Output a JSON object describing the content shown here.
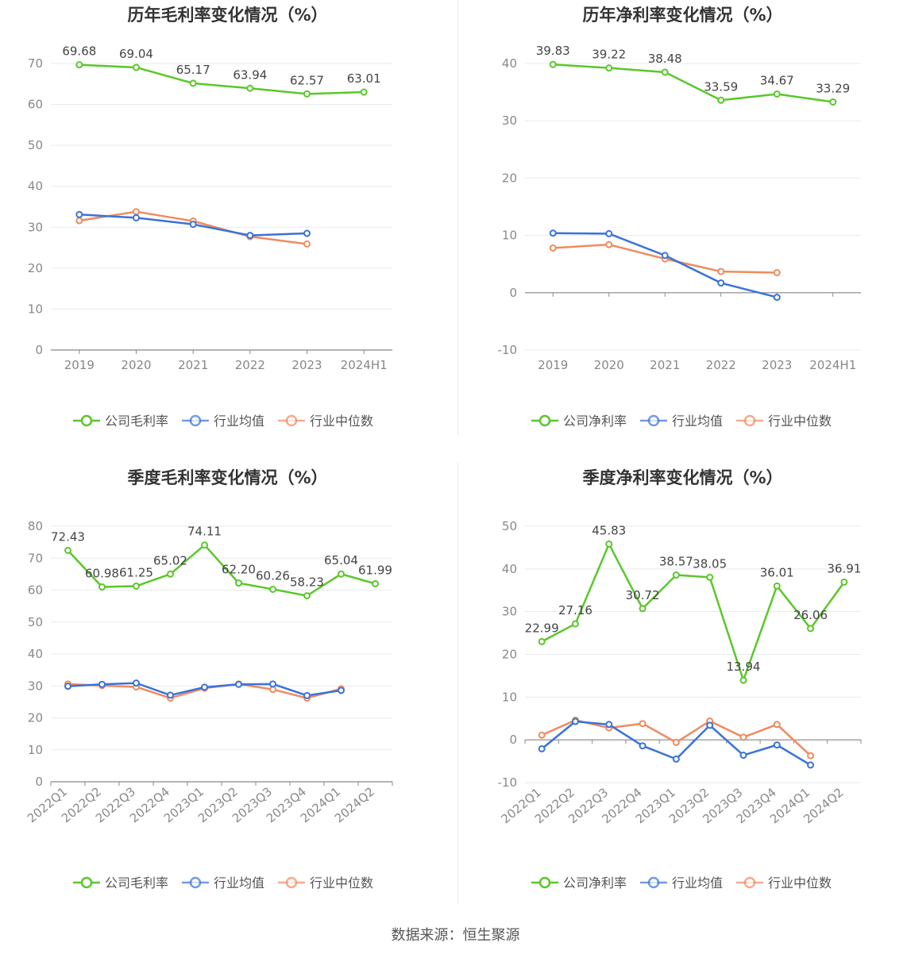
{
  "legend": {
    "gross": [
      "公司毛利率",
      "行业均值",
      "行业中位数"
    ],
    "net": [
      "公司净利率",
      "行业均值",
      "行业中位数"
    ]
  },
  "colors": {
    "company": "#5ac72a",
    "industry_avg": "#3a72d8",
    "industry_median": "#f08a5d",
    "grid": "#e6e9f0",
    "axis": "#888888",
    "text": "#555555"
  },
  "source": "数据来源：恒生聚源",
  "chart_data": [
    {
      "type": "line",
      "title": "历年毛利率变化情况（%）",
      "categories": [
        "2019",
        "2020",
        "2021",
        "2022",
        "2023",
        "2024H1"
      ],
      "ylim": [
        0,
        70
      ],
      "yticks": [
        0,
        10,
        20,
        30,
        40,
        50,
        60,
        70
      ],
      "series": [
        {
          "name": "公司毛利率",
          "values": [
            69.68,
            69.04,
            65.17,
            63.94,
            62.57,
            63.01
          ],
          "labels": [
            "69.68",
            "69.04",
            "65.17",
            "63.94",
            "62.57",
            "63.01"
          ]
        },
        {
          "name": "行业均值",
          "values": [
            33.1,
            32.3,
            30.7,
            28.0,
            28.5,
            null
          ]
        },
        {
          "name": "行业中位数",
          "values": [
            31.6,
            33.8,
            31.5,
            27.7,
            25.9,
            null
          ]
        }
      ],
      "legend": "bottom",
      "grid": true
    },
    {
      "type": "line",
      "title": "历年净利率变化情况（%）",
      "categories": [
        "2019",
        "2020",
        "2021",
        "2022",
        "2023",
        "2024H1"
      ],
      "ylim": [
        -10,
        40
      ],
      "yticks": [
        -10,
        0,
        10,
        20,
        30,
        40
      ],
      "series": [
        {
          "name": "公司净利率",
          "values": [
            39.83,
            39.22,
            38.48,
            33.59,
            34.67,
            33.29
          ],
          "labels": [
            "39.83",
            "39.22",
            "38.48",
            "33.59",
            "34.67",
            "33.29"
          ]
        },
        {
          "name": "行业均值",
          "values": [
            10.4,
            10.3,
            6.5,
            1.7,
            -0.8,
            null
          ]
        },
        {
          "name": "行业中位数",
          "values": [
            7.8,
            8.4,
            5.9,
            3.7,
            3.5,
            null
          ]
        }
      ],
      "legend": "bottom",
      "grid": true
    },
    {
      "type": "line",
      "title": "季度毛利率变化情况（%）",
      "categories": [
        "2022Q1",
        "2022Q2",
        "2022Q3",
        "2022Q4",
        "2023Q1",
        "2023Q2",
        "2023Q3",
        "2023Q4",
        "2024Q1",
        "2024Q2"
      ],
      "ylim": [
        0,
        80
      ],
      "yticks": [
        0,
        10,
        20,
        30,
        40,
        50,
        60,
        70,
        80
      ],
      "series": [
        {
          "name": "公司毛利率",
          "values": [
            72.43,
            60.98,
            61.25,
            65.02,
            74.11,
            62.2,
            60.26,
            58.23,
            65.04,
            61.99
          ],
          "labels": [
            "72.43",
            "60.98",
            "61.25",
            "65.02",
            "74.11",
            "62.20",
            "60.26",
            "58.23",
            "65.04",
            "61.99"
          ]
        },
        {
          "name": "行业均值",
          "values": [
            29.9,
            30.5,
            30.9,
            27.1,
            29.6,
            30.5,
            30.6,
            27.0,
            28.6,
            null
          ]
        },
        {
          "name": "行业中位数",
          "values": [
            30.6,
            30.1,
            29.7,
            26.2,
            29.3,
            30.6,
            28.9,
            26.2,
            29.1,
            null
          ]
        }
      ],
      "legend": "bottom",
      "grid": true
    },
    {
      "type": "line",
      "title": "季度净利率变化情况（%）",
      "categories": [
        "2022Q1",
        "2022Q2",
        "2022Q3",
        "2022Q4",
        "2023Q1",
        "2023Q2",
        "2023Q3",
        "2023Q4",
        "2024Q1",
        "2024Q2"
      ],
      "ylim": [
        -10,
        50
      ],
      "yticks": [
        -10,
        0,
        10,
        20,
        30,
        40,
        50
      ],
      "series": [
        {
          "name": "公司净利率",
          "values": [
            22.99,
            27.16,
            45.83,
            30.72,
            38.57,
            38.05,
            13.94,
            36.01,
            26.06,
            36.91
          ],
          "labels": [
            "22.99",
            "27.16",
            "45.83",
            "30.72",
            "38.57",
            "38.05",
            "13.94",
            "36.01",
            "26.06",
            "36.91"
          ]
        },
        {
          "name": "行业均值",
          "values": [
            -2.1,
            4.3,
            3.6,
            -1.4,
            -4.5,
            3.4,
            -3.6,
            -1.2,
            -5.9,
            null
          ]
        },
        {
          "name": "行业中位数",
          "values": [
            1.1,
            4.6,
            2.8,
            3.8,
            -0.6,
            4.4,
            0.6,
            3.6,
            -3.7,
            null
          ]
        }
      ],
      "legend": "bottom",
      "grid": true
    }
  ]
}
